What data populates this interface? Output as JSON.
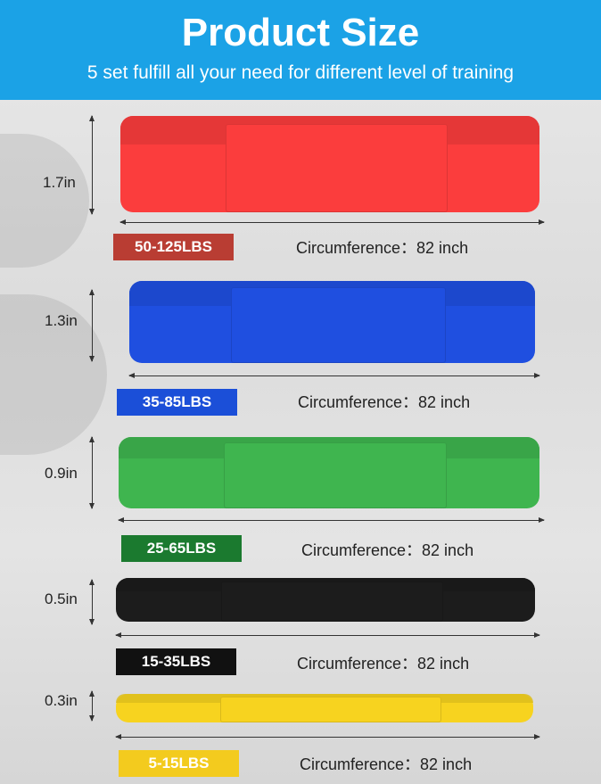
{
  "header": {
    "title": "Product Size",
    "subtitle": "5 set fulfill all your need for different level of training"
  },
  "bands": [
    {
      "thickness": "1.7in",
      "resistance": "50-125LBS",
      "circumference": "Circumference：82 inch",
      "band_color": "#fb3d3d",
      "badge_color": "#b93d33",
      "badge_text_color": "#ffffff"
    },
    {
      "thickness": "1.3in",
      "resistance": "35-85LBS",
      "circumference": "Circumference：82 inch",
      "band_color": "#1f4fe0",
      "badge_color": "#1b4fd8",
      "badge_text_color": "#ffffff"
    },
    {
      "thickness": "0.9in",
      "resistance": "25-65LBS",
      "circumference": "Circumference：82 inch",
      "band_color": "#3fb54f",
      "badge_color": "#1b7a2f",
      "badge_text_color": "#ffffff"
    },
    {
      "thickness": "0.5in",
      "resistance": "15-35LBS",
      "circumference": "Circumference：82 inch",
      "band_color": "#1c1c1c",
      "badge_color": "#111111",
      "badge_text_color": "#ffffff"
    },
    {
      "thickness": "0.3in",
      "resistance": "5-15LBS",
      "circumference": "Circumference：82 inch",
      "band_color": "#f7d31f",
      "badge_color": "#f3cb1e",
      "badge_text_color": "#ffffff"
    }
  ]
}
